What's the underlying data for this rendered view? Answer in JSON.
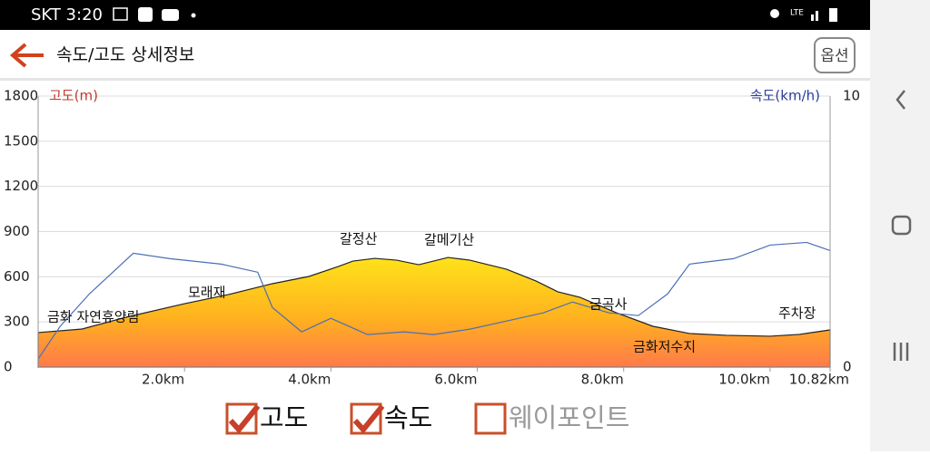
{
  "status_bar": {
    "carrier_time": "SKT 3:20",
    "network": "LTE"
  },
  "header": {
    "title": "속도/고도 상세정보",
    "option_button": "옵션"
  },
  "chart_data": {
    "type": "area-line",
    "y_label": "고도(m)",
    "y2_label": "속도(km/h)",
    "xlim": [
      0,
      10.82
    ],
    "xticks": [
      {
        "value": 2,
        "label": "2.0km"
      },
      {
        "value": 4,
        "label": "4.0km"
      },
      {
        "value": 6,
        "label": "6.0km"
      },
      {
        "value": 8,
        "label": "8.0km"
      },
      {
        "value": 10,
        "label": "10.0km"
      },
      {
        "value": 10.82,
        "label": "10.82km"
      }
    ],
    "ylim": [
      0,
      1800
    ],
    "yticks": [
      0,
      300,
      600,
      900,
      1200,
      1500,
      1800
    ],
    "y2lim": [
      0,
      10
    ],
    "y2ticks": [
      0,
      10
    ],
    "grid": true,
    "series": [
      {
        "name": "고도",
        "color": "#222222",
        "x": [
          0,
          0.6,
          1.2,
          2.0,
          2.6,
          3.2,
          3.7,
          4.1,
          4.3,
          4.6,
          4.9,
          5.2,
          5.6,
          5.9,
          6.4,
          6.8,
          7.1,
          7.4,
          7.9,
          8.4,
          8.9,
          9.4,
          10.0,
          10.4,
          10.82
        ],
        "values": [
          229,
          253,
          331,
          421,
          482,
          554,
          602,
          668,
          704,
          722,
          710,
          680,
          728,
          710,
          650,
          572,
          500,
          464,
          361,
          271,
          223,
          211,
          205,
          217,
          247
        ]
      },
      {
        "name": "속도",
        "color": "#4a6fb5",
        "axis": "y2",
        "x": [
          0,
          0.3,
          0.7,
          1.1,
          1.3,
          1.8,
          2.5,
          3.0,
          3.2,
          3.6,
          4.0,
          4.5,
          5.0,
          5.4,
          5.9,
          6.4,
          6.9,
          7.3,
          7.8,
          8.2,
          8.6,
          8.9,
          9.5,
          10.0,
          10.5,
          10.82
        ],
        "values": [
          0.3,
          1.5,
          2.7,
          3.7,
          4.2,
          4.0,
          3.8,
          3.5,
          2.2,
          1.3,
          1.8,
          1.2,
          1.3,
          1.2,
          1.4,
          1.7,
          2.0,
          2.4,
          2.0,
          1.9,
          2.7,
          3.8,
          4.0,
          4.5,
          4.6,
          4.3
        ]
      }
    ],
    "annotations": [
      "금화 자연휴양림",
      "모래재",
      "갈정산",
      "갈메기산",
      "금곡사",
      "금화저수지",
      "주차장"
    ]
  },
  "legend": [
    {
      "label": "고도",
      "checked": true
    },
    {
      "label": "속도",
      "checked": true
    },
    {
      "label": "웨이포인트",
      "checked": false
    }
  ]
}
